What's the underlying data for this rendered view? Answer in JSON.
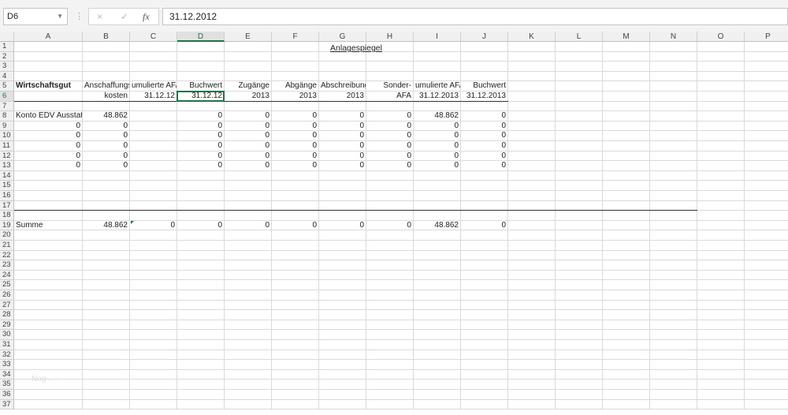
{
  "namebox": {
    "value": "D6"
  },
  "formula_bar": {
    "value": "31.12.2012",
    "cancel_icon": "×",
    "enter_icon": "✓",
    "fx_label": "fx"
  },
  "columns": [
    "A",
    "B",
    "C",
    "D",
    "E",
    "F",
    "G",
    "H",
    "I",
    "J",
    "K",
    "L",
    "M",
    "N",
    "O",
    "P"
  ],
  "row_count": 37,
  "selected_cell": "D6",
  "title": "Anlagespiegel",
  "watermark": "Nog . . .",
  "cells": {
    "A5": "Wirtschaftsgut",
    "B5": "Anschaffungs-",
    "C5": "umulierte AFA",
    "D5": "Buchwert",
    "E5": "Zugänge",
    "F5": "Abgänge",
    "G5": "Abschreibung",
    "H5": "Sonder-",
    "I5": "umulierte AFA",
    "J5": "Buchwert",
    "B6": "kosten",
    "C6": "31.12.12",
    "D6": "31.12.12",
    "E6": "2013",
    "F6": "2013",
    "G6": "2013",
    "H6": "AFA",
    "I6": "31.12.2013",
    "J6": "31.12.2013",
    "A8": "Konto EDV Ausstattu",
    "B8": "48.862",
    "D8": "0",
    "E8": "0",
    "F8": "0",
    "G8": "0",
    "H8": "0",
    "I8": "48.862",
    "J8": "0",
    "A9": "0",
    "B9": "0",
    "D9": "0",
    "E9": "0",
    "F9": "0",
    "G9": "0",
    "H9": "0",
    "I9": "0",
    "J9": "0",
    "A10": "0",
    "B10": "0",
    "D10": "0",
    "E10": "0",
    "F10": "0",
    "G10": "0",
    "H10": "0",
    "I10": "0",
    "J10": "0",
    "A11": "0",
    "B11": "0",
    "D11": "0",
    "E11": "0",
    "F11": "0",
    "G11": "0",
    "H11": "0",
    "I11": "0",
    "J11": "0",
    "A12": "0",
    "B12": "0",
    "D12": "0",
    "E12": "0",
    "F12": "0",
    "G12": "0",
    "H12": "0",
    "I12": "0",
    "J12": "0",
    "A13": "0",
    "B13": "0",
    "D13": "0",
    "E13": "0",
    "F13": "0",
    "G13": "0",
    "H13": "0",
    "I13": "0",
    "J13": "0",
    "A19": "Summe",
    "B19": "48.862",
    "C19": "0",
    "D19": "0",
    "E19": "0",
    "F19": "0",
    "G19": "0",
    "H19": "0",
    "I19": "48.862",
    "J19": "0"
  },
  "colors": {
    "accent": "#217346"
  }
}
